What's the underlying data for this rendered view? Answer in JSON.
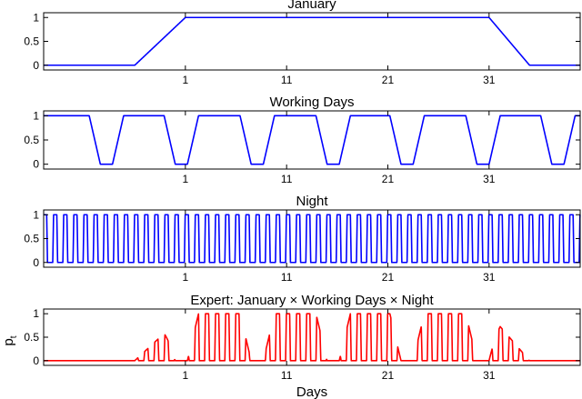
{
  "chart_data": [
    {
      "type": "line",
      "title": "January",
      "xlabel": "",
      "ylabel": "",
      "xlim": [
        -13,
        40
      ],
      "ylim": [
        -0.1,
        1.1
      ],
      "x_ticks": [
        1,
        11,
        21,
        31
      ],
      "y_ticks": [
        0,
        0.5,
        1
      ],
      "y_tick_labels": [
        "0",
        "0.5",
        "1"
      ],
      "series": [
        {
          "color": "#0000ff",
          "kind": "january"
        }
      ]
    },
    {
      "type": "line",
      "title": "Working Days",
      "xlabel": "",
      "ylabel": "",
      "xlim": [
        -13,
        40
      ],
      "ylim": [
        -0.1,
        1.1
      ],
      "x_ticks": [
        1,
        11,
        21,
        31
      ],
      "y_ticks": [
        0,
        0.5,
        1
      ],
      "y_tick_labels": [
        "0",
        "0.5",
        "1"
      ],
      "series": [
        {
          "color": "#0000ff",
          "kind": "workdays"
        }
      ]
    },
    {
      "type": "line",
      "title": "Night",
      "xlabel": "",
      "ylabel": "",
      "xlim": [
        -13,
        40
      ],
      "ylim": [
        -0.1,
        1.1
      ],
      "x_ticks": [
        1,
        11,
        21,
        31
      ],
      "y_ticks": [
        0,
        0.5,
        1
      ],
      "y_tick_labels": [
        "0",
        "0.5",
        "1"
      ],
      "series": [
        {
          "color": "#0000ff",
          "kind": "night"
        }
      ]
    },
    {
      "type": "line",
      "title": "Expert: January × Working Days × Night",
      "xlabel": "Days",
      "ylabel": "p",
      "ylabel_sub": "t",
      "xlim": [
        -13,
        40
      ],
      "ylim": [
        -0.1,
        1.1
      ],
      "x_ticks": [
        1,
        11,
        21,
        31
      ],
      "y_ticks": [
        0,
        0.5,
        1
      ],
      "y_tick_labels": [
        "0",
        "0.5",
        "1"
      ],
      "series": [
        {
          "color": "#ff0000",
          "kind": "product"
        }
      ]
    }
  ]
}
